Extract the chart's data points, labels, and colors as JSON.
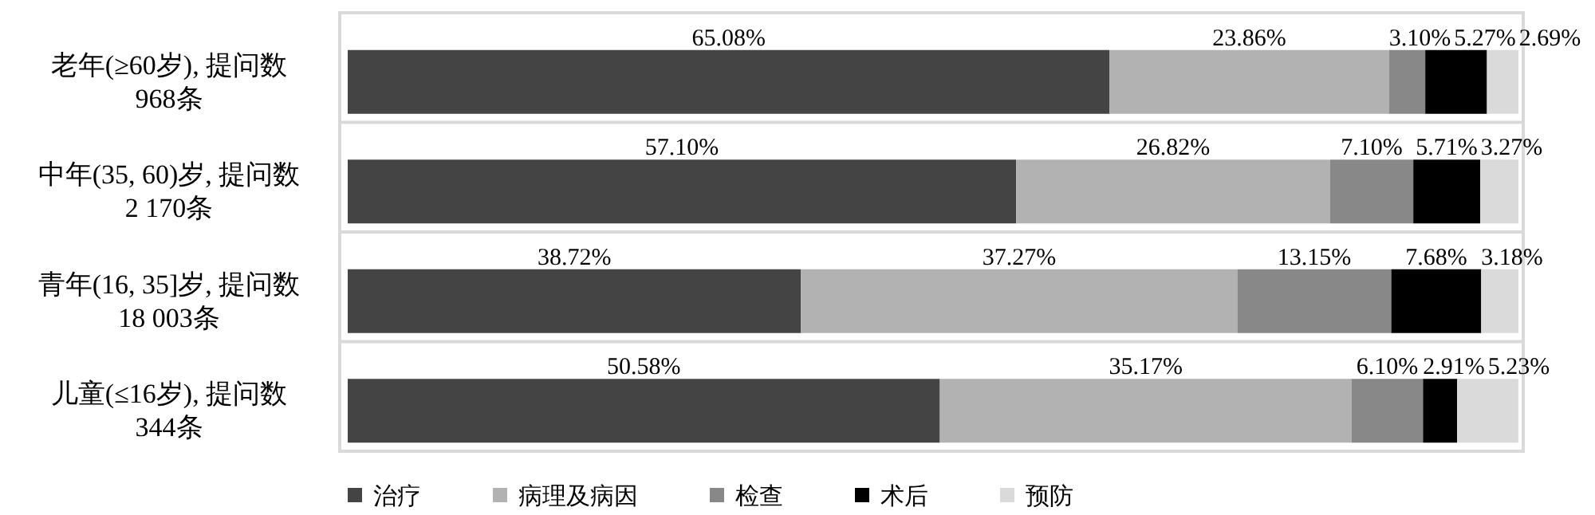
{
  "chart_data": {
    "type": "bar",
    "orientation": "horizontal",
    "stacked": true,
    "data_labels": false,
    "legend": "bottom",
    "grid": "y",
    "categories": [
      "老年(≥60岁), 提问数\n968条",
      "中年(35, 60)岁, 提问数\n2 170条",
      "青年(16, 35]岁, 提问数\n18 003条",
      "儿童(≤16岁), 提问数\n344条"
    ],
    "xlim": [
      0,
      100
    ],
    "series": [
      {
        "name": "治疗",
        "color": "#444444",
        "values": [
          65.08,
          57.1,
          38.72,
          50.58
        ],
        "value_labels": [
          "65.08%",
          "57.10%",
          "38.72%",
          "50.58%"
        ]
      },
      {
        "name": "病理及病因",
        "color": "#b2b2b2",
        "values": [
          23.86,
          26.82,
          37.27,
          35.17
        ],
        "value_labels": [
          "23.86%",
          "26.82%",
          "37.27%",
          "35.17%"
        ]
      },
      {
        "name": "检查",
        "color": "#888888",
        "values": [
          3.1,
          7.1,
          13.15,
          6.1
        ],
        "value_labels": [
          "3.10%",
          "7.10%",
          "13.15%",
          "6.10%"
        ]
      },
      {
        "name": "术后",
        "color": "#000000",
        "values": [
          5.27,
          5.71,
          7.68,
          2.91
        ],
        "value_labels": [
          "5.27%",
          "5.71%",
          "7.68%",
          "2.91%"
        ]
      },
      {
        "name": "预防",
        "color": "#dadada",
        "values": [
          2.69,
          3.27,
          3.18,
          5.23
        ],
        "value_labels": [
          "2.69%",
          "3.27%",
          "3.18%",
          "5.23%"
        ]
      }
    ]
  }
}
